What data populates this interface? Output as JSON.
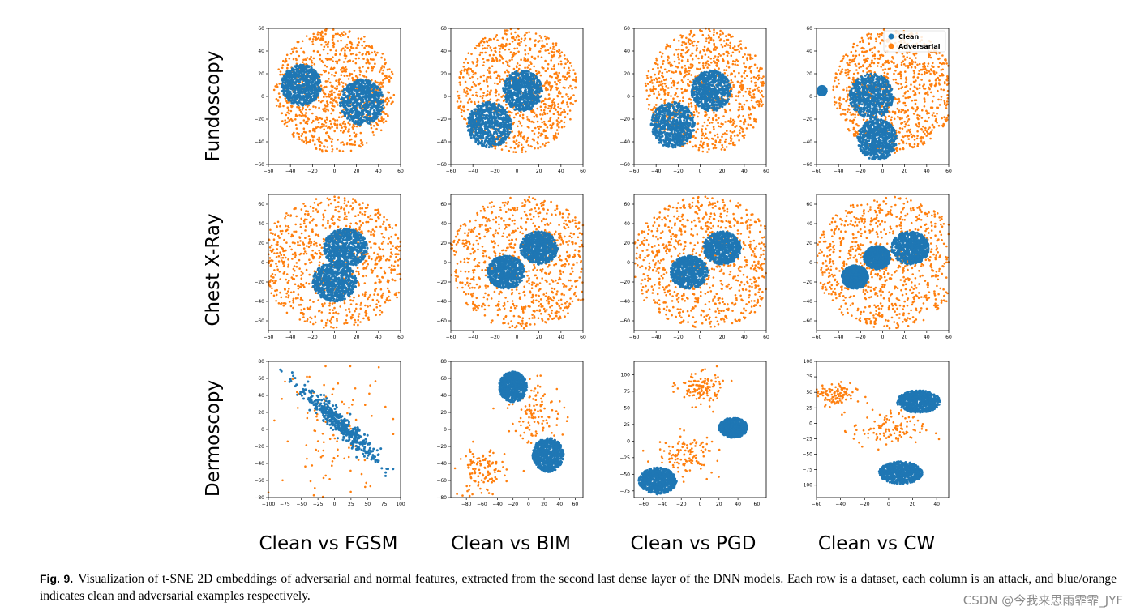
{
  "figure": {
    "row_labels": [
      "Fundoscopy",
      "Chest X-Ray",
      "Dermoscopy"
    ],
    "column_labels": [
      "Clean vs FGSM",
      "Clean vs BIM",
      "Clean vs PGD",
      "Clean vs CW"
    ],
    "legend": [
      "Clean",
      "Adversarial"
    ],
    "colors": {
      "clean": "#1f77b4",
      "adversarial": "#ff7f0e"
    }
  },
  "caption": {
    "label": "Fig. 9.",
    "text": "Visualization of t-SNE 2D embeddings of adversarial and normal features, extracted from the second last dense layer of the DNN models. Each row is a dataset, each column is an attack, and blue/orange indicates clean and adversarial examples respectively."
  },
  "watermark": "CSDN @今我来思雨霏霏_JYF",
  "chart_data": [
    {
      "type": "scatter",
      "dataset": "Fundoscopy",
      "attack": "FGSM",
      "xlim": [
        -60,
        60
      ],
      "ylim": [
        -60,
        60
      ],
      "xticks": [
        -60,
        -40,
        -20,
        0,
        20,
        40,
        60
      ],
      "yticks": [
        -60,
        -40,
        -20,
        0,
        20,
        40,
        60
      ],
      "series": [
        {
          "name": "Clean",
          "clusters": [
            {
              "cx": -30,
              "cy": 10,
              "r": 18
            },
            {
              "cx": 25,
              "cy": -5,
              "r": 20
            }
          ]
        },
        {
          "name": "Adversarial",
          "clusters": [
            {
              "cx": 0,
              "cy": 5,
              "r": 55,
              "ring": true
            }
          ]
        }
      ]
    },
    {
      "type": "scatter",
      "dataset": "Fundoscopy",
      "attack": "BIM",
      "xlim": [
        -60,
        60
      ],
      "ylim": [
        -60,
        60
      ],
      "xticks": [
        -60,
        -40,
        -20,
        0,
        20,
        40,
        60
      ],
      "yticks": [
        -60,
        -40,
        -20,
        0,
        20,
        40,
        60
      ],
      "series": [
        {
          "name": "Clean",
          "clusters": [
            {
              "cx": 5,
              "cy": 5,
              "r": 18
            },
            {
              "cx": -25,
              "cy": -25,
              "r": 20
            }
          ]
        },
        {
          "name": "Adversarial",
          "clusters": [
            {
              "cx": 0,
              "cy": 5,
              "r": 55,
              "ring": true
            }
          ]
        }
      ]
    },
    {
      "type": "scatter",
      "dataset": "Fundoscopy",
      "attack": "PGD",
      "xlim": [
        -60,
        60
      ],
      "ylim": [
        -60,
        60
      ],
      "xticks": [
        -60,
        -40,
        -20,
        0,
        20,
        40,
        60
      ],
      "yticks": [
        -60,
        -40,
        -20,
        0,
        20,
        40,
        60
      ],
      "series": [
        {
          "name": "Clean",
          "clusters": [
            {
              "cx": 10,
              "cy": 5,
              "r": 18
            },
            {
              "cx": -25,
              "cy": -25,
              "r": 20
            }
          ]
        },
        {
          "name": "Adversarial",
          "clusters": [
            {
              "cx": 5,
              "cy": 5,
              "r": 55,
              "ring": true
            }
          ]
        }
      ]
    },
    {
      "type": "scatter",
      "dataset": "Fundoscopy",
      "attack": "CW",
      "xlim": [
        -60,
        60
      ],
      "ylim": [
        -60,
        60
      ],
      "xticks": [
        -60,
        -40,
        -20,
        0,
        20,
        40,
        60
      ],
      "yticks": [
        -60,
        -40,
        -20,
        0,
        20,
        40,
        60
      ],
      "series": [
        {
          "name": "Clean",
          "clusters": [
            {
              "cx": -10,
              "cy": 0,
              "r": 20
            },
            {
              "cx": -5,
              "cy": -38,
              "r": 18
            },
            {
              "cx": -55,
              "cy": 5,
              "r": 4
            }
          ]
        },
        {
          "name": "Adversarial",
          "clusters": [
            {
              "cx": 10,
              "cy": 5,
              "r": 55,
              "ring": true
            }
          ]
        }
      ]
    },
    {
      "type": "scatter",
      "dataset": "Chest X-Ray",
      "attack": "FGSM",
      "xlim": [
        -60,
        60
      ],
      "ylim": [
        -70,
        70
      ],
      "xticks": [
        -60,
        -40,
        -20,
        0,
        20,
        40,
        60
      ],
      "yticks": [
        -60,
        -40,
        -20,
        0,
        20,
        40,
        60
      ],
      "series": [
        {
          "name": "Clean",
          "clusters": [
            {
              "cx": 10,
              "cy": 15,
              "r": 20
            },
            {
              "cx": 0,
              "cy": -20,
              "r": 20
            }
          ]
        },
        {
          "name": "Adversarial",
          "clusters": [
            {
              "cx": 0,
              "cy": 0,
              "r": 68,
              "ring": true
            }
          ]
        }
      ]
    },
    {
      "type": "scatter",
      "dataset": "Chest X-Ray",
      "attack": "BIM",
      "xlim": [
        -60,
        60
      ],
      "ylim": [
        -70,
        70
      ],
      "xticks": [
        -60,
        -40,
        -20,
        0,
        20,
        40,
        60
      ],
      "yticks": [
        -60,
        -40,
        -20,
        0,
        20,
        40,
        60
      ],
      "series": [
        {
          "name": "Clean",
          "clusters": [
            {
              "cx": 20,
              "cy": 15,
              "r": 17
            },
            {
              "cx": -10,
              "cy": -10,
              "r": 17
            }
          ]
        },
        {
          "name": "Adversarial",
          "clusters": [
            {
              "cx": 5,
              "cy": 0,
              "r": 68,
              "ring": true
            }
          ]
        }
      ]
    },
    {
      "type": "scatter",
      "dataset": "Chest X-Ray",
      "attack": "PGD",
      "xlim": [
        -60,
        60
      ],
      "ylim": [
        -70,
        70
      ],
      "xticks": [
        -60,
        -40,
        -20,
        0,
        20,
        40,
        60
      ],
      "yticks": [
        -60,
        -40,
        -20,
        0,
        20,
        40,
        60
      ],
      "series": [
        {
          "name": "Clean",
          "clusters": [
            {
              "cx": 20,
              "cy": 15,
              "r": 17
            },
            {
              "cx": -10,
              "cy": -10,
              "r": 17
            }
          ]
        },
        {
          "name": "Adversarial",
          "clusters": [
            {
              "cx": 5,
              "cy": 0,
              "r": 68,
              "ring": true
            }
          ]
        }
      ]
    },
    {
      "type": "scatter",
      "dataset": "Chest X-Ray",
      "attack": "CW",
      "xlim": [
        -60,
        60
      ],
      "ylim": [
        -70,
        70
      ],
      "xticks": [
        -60,
        -40,
        -20,
        0,
        20,
        40,
        60
      ],
      "yticks": [
        -60,
        -40,
        -20,
        0,
        20,
        40,
        60
      ],
      "series": [
        {
          "name": "Clean",
          "clusters": [
            {
              "cx": 25,
              "cy": 15,
              "r": 17
            },
            {
              "cx": -5,
              "cy": 5,
              "r": 12
            },
            {
              "cx": -25,
              "cy": -15,
              "r": 12
            }
          ]
        },
        {
          "name": "Adversarial",
          "clusters": [
            {
              "cx": 5,
              "cy": 0,
              "r": 68,
              "ring": true
            }
          ]
        }
      ]
    },
    {
      "type": "scatter",
      "dataset": "Dermoscopy",
      "attack": "FGSM",
      "xlim": [
        -100,
        100
      ],
      "ylim": [
        -80,
        80
      ],
      "xticks": [
        -100,
        -75,
        -50,
        -25,
        0,
        25,
        50,
        75,
        100
      ],
      "yticks": [
        -80,
        -60,
        -40,
        -20,
        0,
        20,
        40,
        60,
        80
      ],
      "series": [
        {
          "name": "Clean",
          "clusters": [
            {
              "cx": 10,
              "cy": 5,
              "r": 45,
              "elong": true
            }
          ]
        },
        {
          "name": "Adversarial",
          "clusters": [
            {
              "cx": 0,
              "cy": 0,
              "r": 70,
              "sparse": true
            }
          ]
        }
      ]
    },
    {
      "type": "scatter",
      "dataset": "Dermoscopy",
      "attack": "BIM",
      "xlim": [
        -100,
        70
      ],
      "ylim": [
        -80,
        80
      ],
      "xticks": [
        -80,
        -60,
        -40,
        -20,
        0,
        20,
        40,
        60
      ],
      "yticks": [
        -80,
        -60,
        -40,
        -20,
        0,
        20,
        40,
        60,
        80
      ],
      "series": [
        {
          "name": "Clean",
          "clusters": [
            {
              "cx": -20,
              "cy": 50,
              "r": 18
            },
            {
              "cx": 25,
              "cy": -30,
              "r": 20
            }
          ]
        },
        {
          "name": "Adversarial",
          "clusters": [
            {
              "cx": -60,
              "cy": -50,
              "r": 25,
              "sparse": true
            },
            {
              "cx": 10,
              "cy": 20,
              "r": 30,
              "sparse": true
            }
          ]
        }
      ]
    },
    {
      "type": "scatter",
      "dataset": "Dermoscopy",
      "attack": "PGD",
      "xlim": [
        -70,
        70
      ],
      "ylim": [
        -85,
        120
      ],
      "xticks": [
        -60,
        -40,
        -20,
        0,
        20,
        40,
        60
      ],
      "yticks": [
        -75,
        -50,
        -25,
        0,
        25,
        50,
        75,
        100
      ],
      "series": [
        {
          "name": "Clean",
          "clusters": [
            {
              "cx": 35,
              "cy": 20,
              "r": 15
            },
            {
              "cx": -45,
              "cy": -60,
              "r": 20
            }
          ]
        },
        {
          "name": "Adversarial",
          "clusters": [
            {
              "cx": 0,
              "cy": 80,
              "r": 20,
              "sparse": true
            },
            {
              "cx": -15,
              "cy": -20,
              "r": 25,
              "sparse": true
            }
          ]
        }
      ]
    },
    {
      "type": "scatter",
      "dataset": "Dermoscopy",
      "attack": "CW",
      "xlim": [
        -60,
        50
      ],
      "ylim": [
        -120,
        100
      ],
      "xticks": [
        -60,
        -40,
        -20,
        0,
        20,
        40
      ],
      "yticks": [
        -100,
        -75,
        -50,
        -25,
        0,
        25,
        50,
        75,
        100
      ],
      "series": [
        {
          "name": "Clean",
          "clusters": [
            {
              "cx": 25,
              "cy": 35,
              "r": 18
            },
            {
              "cx": 10,
              "cy": -80,
              "r": 18
            }
          ]
        },
        {
          "name": "Adversarial",
          "clusters": [
            {
              "cx": -45,
              "cy": 45,
              "r": 15,
              "sparse": true
            },
            {
              "cx": 0,
              "cy": -10,
              "r": 25,
              "sparse": true
            }
          ]
        }
      ]
    }
  ]
}
